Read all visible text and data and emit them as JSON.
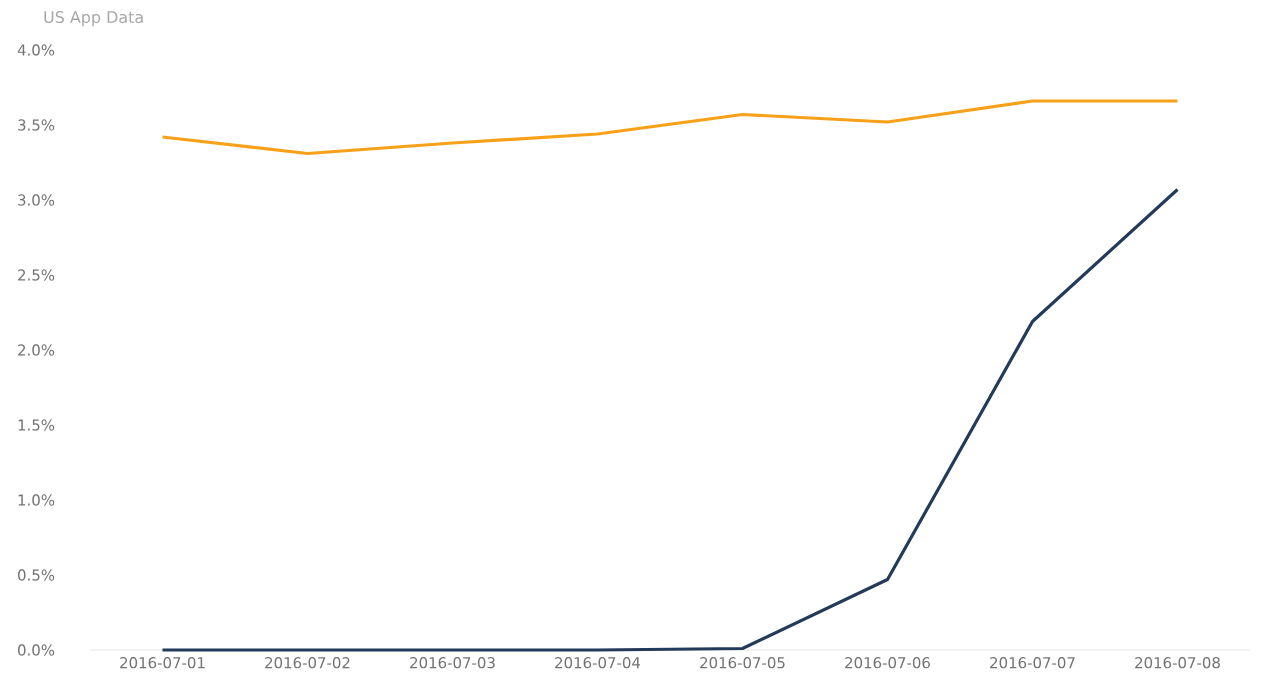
{
  "chart_data": {
    "type": "line",
    "subtitle": "US App Data",
    "categories": [
      "2016-07-01",
      "2016-07-02",
      "2016-07-03",
      "2016-07-04",
      "2016-07-05",
      "2016-07-06",
      "2016-07-07",
      "2016-07-08"
    ],
    "series": [
      {
        "color": "#f7a11a",
        "values": [
          3.42,
          3.31,
          3.38,
          3.44,
          3.57,
          3.52,
          3.66,
          3.66
        ]
      },
      {
        "color": "#233a5a",
        "values": [
          0,
          0,
          0,
          0,
          0.01,
          0.47,
          2.19,
          3.07
        ]
      }
    ],
    "ylim": [
      0,
      4
    ],
    "yticks": [
      {
        "value": 0,
        "label": "0.0%"
      },
      {
        "value": 0.5,
        "label": "0.5%"
      },
      {
        "value": 1,
        "label": "1.0%"
      },
      {
        "value": 1.5,
        "label": "1.5%"
      },
      {
        "value": 2,
        "label": "2.0%"
      },
      {
        "value": 2.5,
        "label": "2.5%"
      },
      {
        "value": 3,
        "label": "3.0%"
      },
      {
        "value": 3.5,
        "label": "3.5%"
      },
      {
        "value": 4,
        "label": "4.0%"
      }
    ],
    "grid": false,
    "marker": "none",
    "line_style": "solid"
  }
}
